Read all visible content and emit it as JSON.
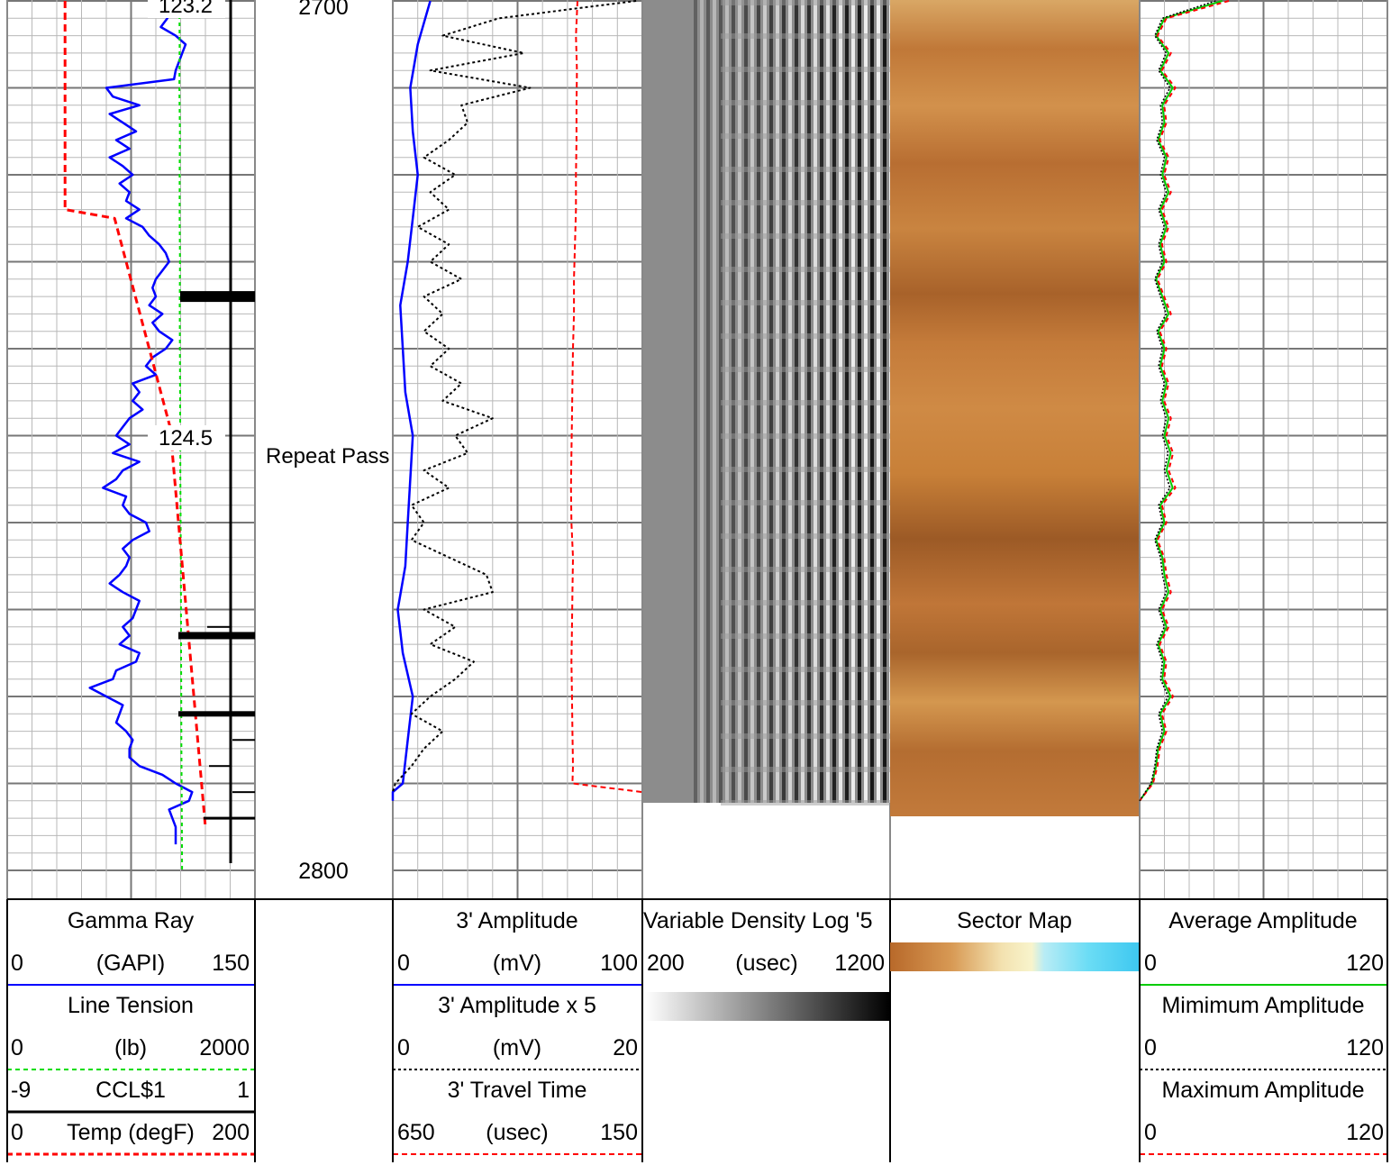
{
  "depth": {
    "top_label": "2700",
    "bottom_label": "2800",
    "annotation": "Repeat Pass",
    "markers": [
      "123.2",
      "124.5"
    ]
  },
  "headers": {
    "gamma_ray": {
      "title": "Gamma Ray",
      "min": "0",
      "unit": "(GAPI)",
      "max": "150",
      "color": "#0000ff"
    },
    "line_tension": {
      "title": "Line Tension",
      "min": "0",
      "unit": "(lb)",
      "max": "2000",
      "color": "#00dd00"
    },
    "ccl": {
      "min": "-9",
      "title": "CCL$1",
      "max": "1",
      "color": "#000000"
    },
    "temp": {
      "min": "0",
      "title": "Temp (degF)",
      "max": "200",
      "color": "#ff0000"
    },
    "amp3": {
      "title": "3' Amplitude",
      "min": "0",
      "unit": "(mV)",
      "max": "100",
      "color": "#0000ff"
    },
    "amp3x5": {
      "title": "3' Amplitude x 5",
      "min": "0",
      "unit": "(mV)",
      "max": "20",
      "color": "#000000"
    },
    "tt3": {
      "title": "3' Travel Time",
      "min": "650",
      "unit": "(usec)",
      "max": "150",
      "color": "#ff0000"
    },
    "vdl": {
      "title": "5' Variable Density Log",
      "min": "200",
      "unit": "(usec)",
      "max": "1200"
    },
    "sector": {
      "title": "Sector Map"
    },
    "avg_amp": {
      "title": "Average Amplitude",
      "min": "0",
      "max": "120",
      "color": "#00cc00"
    },
    "min_amp": {
      "title": "Mimimum Amplitude",
      "min": "0",
      "max": "120",
      "color": "#000000"
    },
    "max_amp": {
      "title": "Maximum Amplitude",
      "min": "0",
      "max": "120",
      "color": "#ff0000"
    }
  },
  "chart_data": {
    "type": "line",
    "depth_range": [
      2700,
      2800
    ],
    "grid": true,
    "series": [
      {
        "name": "Gamma Ray",
        "depth": [
          2700,
          2701,
          2702,
          2703,
          2704,
          2705,
          2706,
          2707,
          2708,
          2709,
          2710,
          2711,
          2712,
          2713,
          2714,
          2715,
          2716,
          2717,
          2718,
          2719,
          2720,
          2721,
          2722,
          2723,
          2724,
          2725,
          2726,
          2727,
          2728,
          2729,
          2730,
          2731,
          2732,
          2733,
          2734,
          2735,
          2736,
          2737,
          2738,
          2739,
          2740,
          2741,
          2742,
          2743,
          2744,
          2745,
          2746,
          2747,
          2748,
          2749,
          2750,
          2751,
          2752,
          2753,
          2754,
          2755,
          2756,
          2757,
          2758,
          2759,
          2760,
          2761,
          2762,
          2763,
          2764,
          2765,
          2766,
          2767,
          2768,
          2769,
          2770,
          2771,
          2772,
          2773,
          2774,
          2775,
          2776,
          2777,
          2778,
          2779,
          2780,
          2781,
          2782,
          2783,
          2784,
          2785,
          2786,
          2787,
          2788,
          2789,
          2790,
          2791,
          2792,
          2793,
          2794,
          2795,
          2796,
          2797
        ],
        "values": [
          88,
          96,
          97,
          93,
          102,
          108,
          106,
          104,
          102,
          101,
          60,
          64,
          80,
          62,
          70,
          78,
          66,
          74,
          62,
          70,
          76,
          68,
          74,
          72,
          80,
          72,
          82,
          86,
          92,
          96,
          98,
          94,
          90,
          88,
          90,
          86,
          94,
          88,
          92,
          100,
          96,
          88,
          84,
          90,
          76,
          80,
          76,
          82,
          74,
          70,
          66,
          74,
          64,
          80,
          70,
          66,
          58,
          72,
          70,
          74,
          84,
          86,
          76,
          70,
          74,
          72,
          68,
          62,
          70,
          80,
          78,
          76,
          70,
          74,
          68,
          80,
          78,
          66,
          64,
          50,
          60,
          70,
          68,
          66,
          72,
          76,
          74,
          74,
          80,
          94,
          102,
          112,
          110,
          98,
          100,
          102,
          102,
          102
        ]
      },
      {
        "name": "Line Tension",
        "depth": [
          2700,
          2705,
          2710,
          2715,
          2720,
          2725,
          2730,
          2735,
          2740,
          2745,
          2750,
          2755,
          2760,
          2765,
          2770,
          2775,
          2780,
          2785,
          2790,
          2795,
          2800
        ],
        "values": [
          1390,
          1392,
          1390,
          1394,
          1392,
          1392,
          1395,
          1393,
          1394,
          1396,
          1397,
          1398,
          1400,
          1402,
          1403,
          1404,
          1405,
          1406,
          1408,
          1410,
          1412
        ]
      },
      {
        "name": "Temp (degF)",
        "depth": [
          2700,
          2724,
          2725,
          2750,
          2752,
          2795
        ],
        "values": [
          123.2,
          123.2,
          123.8,
          124.5,
          124.5,
          124.9
        ]
      },
      {
        "name": "3' Amplitude",
        "depth": [
          2700,
          2705,
          2710,
          2715,
          2720,
          2725,
          2730,
          2735,
          2740,
          2745,
          2750,
          2755,
          2760,
          2765,
          2770,
          2775,
          2780,
          2785,
          2790,
          2791,
          2792
        ],
        "values": [
          15,
          10,
          7,
          8,
          10,
          8,
          6,
          3,
          4,
          5,
          8,
          7,
          6,
          5,
          2,
          4,
          8,
          6,
          4,
          0,
          0
        ]
      },
      {
        "name": "3' Amplitude x 5",
        "depth": [
          2700,
          2702,
          2704,
          2706,
          2708,
          2710,
          2712,
          2714,
          2716,
          2718,
          2720,
          2722,
          2724,
          2726,
          2728,
          2730,
          2732,
          2734,
          2736,
          2738,
          2740,
          2742,
          2744,
          2746,
          2748,
          2750,
          2752,
          2754,
          2756,
          2758,
          2760,
          2762,
          2764,
          2766,
          2768,
          2770,
          2772,
          2774,
          2776,
          2778,
          2780,
          2782,
          2784,
          2786,
          2788,
          2790,
          2791
        ],
        "values": [
          19.5,
          8.5,
          4,
          10.5,
          3,
          11,
          5.5,
          6,
          4.5,
          2.5,
          5,
          3,
          4.5,
          2,
          4.5,
          3,
          5.5,
          2.5,
          4,
          2.5,
          4.5,
          3,
          5.5,
          4,
          8,
          5,
          6,
          2.5,
          4.5,
          1.5,
          2.5,
          1.5,
          4.5,
          7.5,
          8,
          2.5,
          5,
          3,
          6.5,
          5,
          3,
          1.5,
          4,
          2.5,
          1.5,
          0.2,
          0
        ]
      },
      {
        "name": "3' Travel Time",
        "depth": [
          2700,
          2704,
          2708,
          2712,
          2716,
          2720,
          2724,
          2728,
          2732,
          2736,
          2740,
          2744,
          2748,
          2752,
          2756,
          2760,
          2764,
          2768,
          2772,
          2776,
          2780,
          2784,
          2788,
          2790,
          2791
        ],
        "values": [
          280,
          283,
          281,
          282,
          282,
          283,
          283,
          285,
          287,
          287,
          289,
          290,
          291,
          292,
          293,
          292,
          289,
          290,
          291,
          292,
          291,
          290,
          289,
          290,
          150
        ]
      },
      {
        "name": "Average Amplitude",
        "depth": [
          2700,
          2702,
          2704,
          2706,
          2708,
          2710,
          2712,
          2714,
          2716,
          2718,
          2720,
          2722,
          2724,
          2726,
          2728,
          2730,
          2732,
          2734,
          2736,
          2738,
          2740,
          2742,
          2744,
          2746,
          2748,
          2750,
          2752,
          2754,
          2756,
          2758,
          2760,
          2762,
          2764,
          2766,
          2768,
          2770,
          2772,
          2774,
          2776,
          2778,
          2780,
          2782,
          2784,
          2786,
          2788,
          2790,
          2792
        ],
        "values": [
          40,
          12,
          8,
          14,
          10,
          16,
          11,
          12,
          9,
          13,
          11,
          14,
          10,
          13,
          10,
          12,
          8,
          11,
          14,
          9,
          12,
          10,
          13,
          11,
          14,
          12,
          15,
          13,
          16,
          10,
          12,
          8,
          11,
          12,
          14,
          10,
          13,
          9,
          12,
          11,
          15,
          10,
          12,
          9,
          8,
          6,
          0
        ]
      }
    ]
  }
}
